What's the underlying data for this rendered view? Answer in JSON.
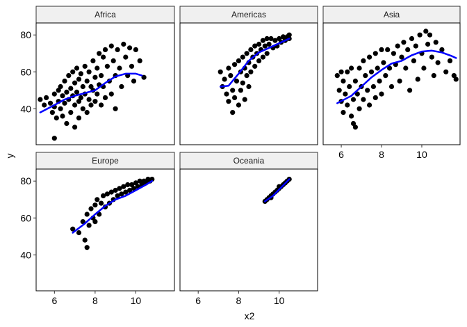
{
  "chart_data": {
    "type": "scatter",
    "xlabel": "x2",
    "ylabel": "y",
    "xlim": [
      5.1,
      11.9
    ],
    "ylim": [
      20.5,
      86.5
    ],
    "x_ticks": [
      6,
      8,
      10
    ],
    "y_ticks": [
      40,
      60,
      80
    ],
    "grid": false,
    "point_color": "#000000",
    "smooth_color": "#0000ff",
    "strip_fill": "#f0f0f0",
    "panels": [
      {
        "name": "Africa",
        "points": [
          [
            5.3,
            45
          ],
          [
            5.5,
            42
          ],
          [
            5.6,
            46
          ],
          [
            5.8,
            43
          ],
          [
            5.9,
            38
          ],
          [
            6.0,
            48
          ],
          [
            6.0,
            41
          ],
          [
            6.1,
            35
          ],
          [
            6.2,
            50
          ],
          [
            6.2,
            44
          ],
          [
            6.3,
            52
          ],
          [
            6.3,
            40
          ],
          [
            6.4,
            47
          ],
          [
            6.4,
            36
          ],
          [
            6.5,
            55
          ],
          [
            6.5,
            43
          ],
          [
            6.6,
            49
          ],
          [
            6.6,
            32
          ],
          [
            6.7,
            58
          ],
          [
            6.7,
            45
          ],
          [
            6.8,
            51
          ],
          [
            6.8,
            38
          ],
          [
            6.9,
            60
          ],
          [
            6.9,
            47
          ],
          [
            7.0,
            54
          ],
          [
            7.0,
            42
          ],
          [
            7.0,
            30
          ],
          [
            7.1,
            62
          ],
          [
            7.1,
            49
          ],
          [
            7.2,
            56
          ],
          [
            7.2,
            44
          ],
          [
            7.2,
            35
          ],
          [
            7.3,
            59
          ],
          [
            7.3,
            46
          ],
          [
            7.4,
            52
          ],
          [
            7.4,
            40
          ],
          [
            7.5,
            63
          ],
          [
            7.5,
            48
          ],
          [
            7.6,
            55
          ],
          [
            7.6,
            38
          ],
          [
            7.7,
            60
          ],
          [
            7.7,
            45
          ],
          [
            7.8,
            52
          ],
          [
            7.8,
            42
          ],
          [
            7.9,
            66
          ],
          [
            7.9,
            50
          ],
          [
            8.0,
            57
          ],
          [
            8.0,
            44
          ],
          [
            8.1,
            62
          ],
          [
            8.1,
            48
          ],
          [
            8.2,
            70
          ],
          [
            8.2,
            53
          ],
          [
            8.3,
            58
          ],
          [
            8.3,
            42
          ],
          [
            8.4,
            68
          ],
          [
            8.4,
            52
          ],
          [
            8.5,
            72
          ],
          [
            8.5,
            46
          ],
          [
            8.6,
            63
          ],
          [
            8.7,
            55
          ],
          [
            8.8,
            74
          ],
          [
            8.8,
            48
          ],
          [
            8.9,
            66
          ],
          [
            9.0,
            58
          ],
          [
            9.0,
            40
          ],
          [
            9.1,
            72
          ],
          [
            9.2,
            62
          ],
          [
            9.3,
            52
          ],
          [
            9.4,
            75
          ],
          [
            9.5,
            68
          ],
          [
            9.6,
            58
          ],
          [
            9.7,
            73
          ],
          [
            9.8,
            63
          ],
          [
            9.9,
            55
          ],
          [
            10.0,
            72
          ],
          [
            10.2,
            66
          ],
          [
            10.4,
            57
          ],
          [
            6.0,
            24
          ]
        ],
        "smooth": [
          [
            5.3,
            38
          ],
          [
            6.0,
            42
          ],
          [
            6.5,
            45
          ],
          [
            7.0,
            47
          ],
          [
            7.5,
            48.5
          ],
          [
            8.0,
            50
          ],
          [
            8.5,
            54
          ],
          [
            9.0,
            57.5
          ],
          [
            9.5,
            59
          ],
          [
            10.0,
            59
          ],
          [
            10.3,
            58
          ]
        ]
      },
      {
        "name": "Americas",
        "points": [
          [
            7.1,
            60
          ],
          [
            7.2,
            52
          ],
          [
            7.3,
            56
          ],
          [
            7.4,
            48
          ],
          [
            7.5,
            62
          ],
          [
            7.5,
            44
          ],
          [
            7.6,
            58
          ],
          [
            7.7,
            50
          ],
          [
            7.7,
            38
          ],
          [
            7.8,
            64
          ],
          [
            7.8,
            46
          ],
          [
            7.9,
            55
          ],
          [
            8.0,
            66
          ],
          [
            8.0,
            42
          ],
          [
            8.1,
            60
          ],
          [
            8.1,
            50
          ],
          [
            8.2,
            68
          ],
          [
            8.2,
            54
          ],
          [
            8.3,
            62
          ],
          [
            8.3,
            45
          ],
          [
            8.4,
            70
          ],
          [
            8.4,
            58
          ],
          [
            8.5,
            65
          ],
          [
            8.5,
            52
          ],
          [
            8.6,
            72
          ],
          [
            8.6,
            60
          ],
          [
            8.7,
            68
          ],
          [
            8.8,
            74
          ],
          [
            8.8,
            63
          ],
          [
            8.9,
            70
          ],
          [
            9.0,
            75
          ],
          [
            9.0,
            66
          ],
          [
            9.1,
            72
          ],
          [
            9.2,
            77
          ],
          [
            9.2,
            68
          ],
          [
            9.3,
            74
          ],
          [
            9.4,
            78
          ],
          [
            9.4,
            70
          ],
          [
            9.5,
            75
          ],
          [
            9.6,
            78
          ],
          [
            9.7,
            73
          ],
          [
            9.8,
            77
          ],
          [
            9.9,
            74
          ],
          [
            10.0,
            78
          ],
          [
            10.1,
            76
          ],
          [
            10.2,
            79
          ],
          [
            10.3,
            77
          ],
          [
            10.4,
            79
          ],
          [
            10.5,
            78
          ],
          [
            10.5,
            80
          ]
        ],
        "smooth": [
          [
            7.1,
            52
          ],
          [
            7.5,
            52.5
          ],
          [
            8.0,
            59
          ],
          [
            8.5,
            66
          ],
          [
            9.0,
            70.5
          ],
          [
            9.5,
            73
          ],
          [
            10.0,
            75.5
          ],
          [
            10.5,
            78
          ]
        ]
      },
      {
        "name": "Asia",
        "points": [
          [
            5.8,
            58
          ],
          [
            5.9,
            50
          ],
          [
            6.0,
            60
          ],
          [
            6.0,
            44
          ],
          [
            6.1,
            38
          ],
          [
            6.1,
            55
          ],
          [
            6.2,
            48
          ],
          [
            6.3,
            60
          ],
          [
            6.3,
            42
          ],
          [
            6.4,
            52
          ],
          [
            6.5,
            36
          ],
          [
            6.5,
            62
          ],
          [
            6.6,
            45
          ],
          [
            6.6,
            32
          ],
          [
            6.7,
            55
          ],
          [
            6.7,
            30
          ],
          [
            6.8,
            48
          ],
          [
            6.9,
            62
          ],
          [
            6.9,
            40
          ],
          [
            7.0,
            52
          ],
          [
            7.1,
            66
          ],
          [
            7.1,
            45
          ],
          [
            7.2,
            58
          ],
          [
            7.3,
            50
          ],
          [
            7.4,
            68
          ],
          [
            7.4,
            42
          ],
          [
            7.5,
            60
          ],
          [
            7.6,
            52
          ],
          [
            7.7,
            70
          ],
          [
            7.7,
            46
          ],
          [
            7.8,
            62
          ],
          [
            7.9,
            55
          ],
          [
            8.0,
            72
          ],
          [
            8.0,
            48
          ],
          [
            8.1,
            65
          ],
          [
            8.2,
            58
          ],
          [
            8.3,
            72
          ],
          [
            8.4,
            62
          ],
          [
            8.5,
            52
          ],
          [
            8.6,
            70
          ],
          [
            8.7,
            64
          ],
          [
            8.8,
            74
          ],
          [
            8.9,
            55
          ],
          [
            9.0,
            68
          ],
          [
            9.1,
            76
          ],
          [
            9.2,
            62
          ],
          [
            9.3,
            72
          ],
          [
            9.4,
            50
          ],
          [
            9.5,
            78
          ],
          [
            9.6,
            66
          ],
          [
            9.7,
            74
          ],
          [
            9.8,
            56
          ],
          [
            9.9,
            80
          ],
          [
            10.0,
            70
          ],
          [
            10.1,
            62
          ],
          [
            10.2,
            82
          ],
          [
            10.3,
            75
          ],
          [
            10.4,
            80
          ],
          [
            10.5,
            68
          ],
          [
            10.6,
            58
          ],
          [
            10.7,
            76
          ],
          [
            10.8,
            65
          ],
          [
            11.0,
            72
          ],
          [
            11.2,
            60
          ],
          [
            11.4,
            66
          ],
          [
            11.6,
            58
          ],
          [
            11.7,
            56
          ]
        ],
        "smooth": [
          [
            5.8,
            43
          ],
          [
            6.5,
            47
          ],
          [
            7.0,
            52
          ],
          [
            7.5,
            57
          ],
          [
            8.0,
            61
          ],
          [
            8.5,
            64.5
          ],
          [
            9.0,
            66
          ],
          [
            9.5,
            69
          ],
          [
            10.0,
            71
          ],
          [
            10.5,
            71.5
          ],
          [
            11.0,
            70.5
          ],
          [
            11.5,
            68.5
          ],
          [
            11.7,
            67.5
          ]
        ]
      },
      {
        "name": "Europe",
        "points": [
          [
            6.9,
            54
          ],
          [
            7.2,
            52
          ],
          [
            7.4,
            58
          ],
          [
            7.5,
            48
          ],
          [
            7.6,
            44
          ],
          [
            7.6,
            62
          ],
          [
            7.7,
            56
          ],
          [
            7.8,
            65
          ],
          [
            7.9,
            60
          ],
          [
            8.0,
            67
          ],
          [
            8.0,
            58
          ],
          [
            8.1,
            70
          ],
          [
            8.2,
            62
          ],
          [
            8.3,
            68
          ],
          [
            8.4,
            72
          ],
          [
            8.5,
            66
          ],
          [
            8.6,
            73
          ],
          [
            8.7,
            68
          ],
          [
            8.8,
            74
          ],
          [
            8.9,
            70
          ],
          [
            9.0,
            75
          ],
          [
            9.1,
            72
          ],
          [
            9.2,
            76
          ],
          [
            9.3,
            73
          ],
          [
            9.4,
            77
          ],
          [
            9.5,
            74
          ],
          [
            9.6,
            78
          ],
          [
            9.7,
            75
          ],
          [
            9.8,
            78
          ],
          [
            9.9,
            76
          ],
          [
            10.0,
            79
          ],
          [
            10.1,
            77
          ],
          [
            10.2,
            80
          ],
          [
            10.3,
            78
          ],
          [
            10.4,
            80
          ],
          [
            10.5,
            79
          ],
          [
            10.6,
            81
          ],
          [
            10.7,
            80
          ],
          [
            10.8,
            81
          ]
        ],
        "smooth": [
          [
            6.9,
            52
          ],
          [
            7.5,
            57
          ],
          [
            8.0,
            62
          ],
          [
            8.5,
            66.5
          ],
          [
            9.0,
            70
          ],
          [
            9.5,
            72
          ],
          [
            10.0,
            75
          ],
          [
            10.5,
            78
          ],
          [
            10.8,
            80
          ]
        ]
      },
      {
        "name": "Oceania",
        "points": [
          [
            9.3,
            69
          ],
          [
            9.4,
            70
          ],
          [
            9.5,
            71
          ],
          [
            9.6,
            72
          ],
          [
            9.6,
            71
          ],
          [
            9.7,
            73
          ],
          [
            9.8,
            74
          ],
          [
            9.9,
            75
          ],
          [
            10.0,
            76
          ],
          [
            10.0,
            77
          ],
          [
            10.1,
            77
          ],
          [
            10.2,
            78
          ],
          [
            10.3,
            79
          ],
          [
            10.4,
            80
          ],
          [
            10.5,
            81
          ]
        ],
        "smooth": [
          [
            9.3,
            69
          ],
          [
            9.7,
            72
          ],
          [
            10.1,
            76.5
          ],
          [
            10.5,
            81
          ]
        ]
      }
    ]
  }
}
